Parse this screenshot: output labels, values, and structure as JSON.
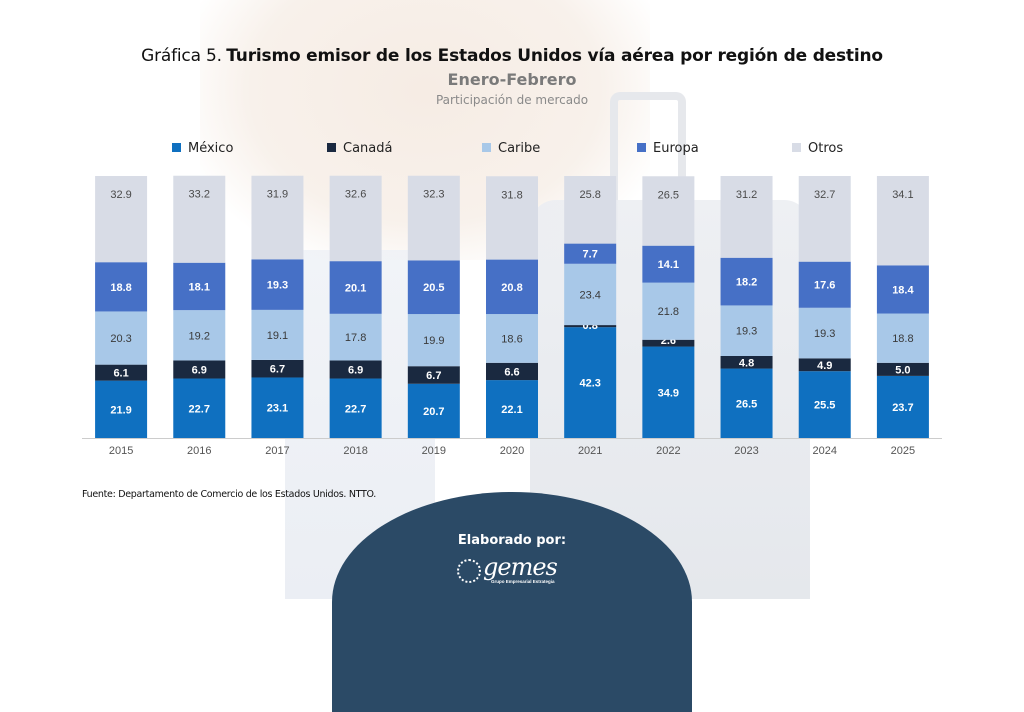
{
  "title_prefix": "Gráfica 5.",
  "title_main": "Turismo emisor de los Estados Unidos vía aérea por región de destino",
  "subtitle": "Enero-Febrero",
  "subsubtitle": "Participación de mercado",
  "source": "Fuente: Departamento de Comercio de los Estados Unidos. NTTO.",
  "badge": {
    "label": "Elaborado por:",
    "logo": "gemes",
    "tagline": "Grupo Empresarial Estrategia"
  },
  "chart_data": {
    "type": "bar",
    "stacked": true,
    "categories": [
      "2015",
      "2016",
      "2017",
      "2018",
      "2019",
      "2020",
      "2021",
      "2022",
      "2023",
      "2024",
      "2025"
    ],
    "series": [
      {
        "name": "México",
        "color": "#0f70c0",
        "label_color": "#ffffff",
        "values": [
          21.9,
          22.7,
          23.1,
          22.7,
          20.7,
          22.1,
          42.3,
          34.9,
          26.5,
          25.5,
          23.7
        ]
      },
      {
        "name": "Canadá",
        "color": "#1a2940",
        "label_color": "#ffffff",
        "values": [
          6.1,
          6.9,
          6.7,
          6.9,
          6.7,
          6.6,
          0.8,
          2.6,
          4.8,
          4.9,
          5.0
        ]
      },
      {
        "name": "Caribe",
        "color": "#a8c8e8",
        "label_color": "#3a3a3a",
        "values": [
          20.3,
          19.2,
          19.1,
          17.8,
          19.9,
          18.6,
          23.4,
          21.8,
          19.3,
          19.3,
          18.8
        ]
      },
      {
        "name": "Europa",
        "color": "#4670c6",
        "label_color": "#ffffff",
        "values": [
          18.8,
          18.1,
          19.3,
          20.1,
          20.5,
          20.8,
          7.7,
          14.1,
          18.2,
          17.6,
          18.4
        ]
      },
      {
        "name": "Otros",
        "color": "#d8dce6",
        "label_color": "#4a4a4a",
        "values": [
          32.9,
          33.2,
          31.9,
          32.6,
          32.3,
          31.8,
          25.8,
          26.5,
          31.2,
          32.7,
          34.1
        ]
      }
    ],
    "ylim": [
      0,
      100
    ],
    "legend_position": "top",
    "grid": false
  }
}
